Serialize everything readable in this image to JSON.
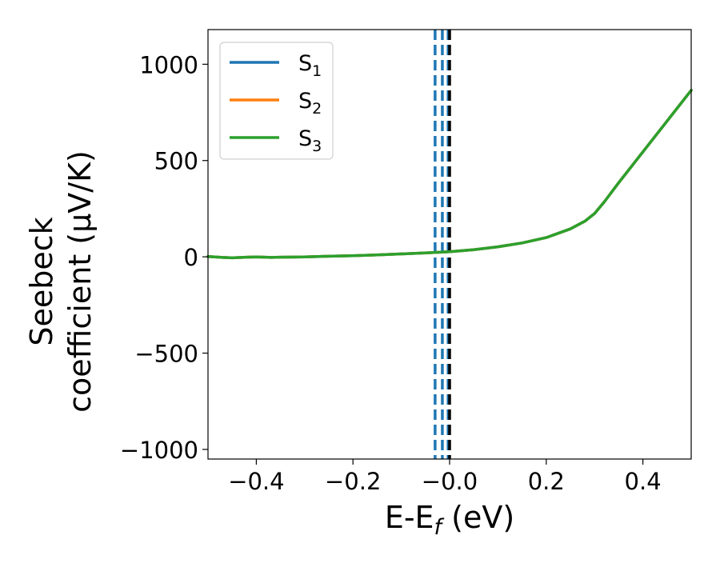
{
  "chart_data": {
    "type": "line",
    "title": "",
    "xlabel": {
      "base": "E-E",
      "sub": "f",
      "unit": " (eV)"
    },
    "ylabel": {
      "line1": "Seebeck",
      "line2": "coefficient  (μV/K)"
    },
    "xlim": [
      -0.5,
      0.5
    ],
    "ylim": [
      -1050,
      1180
    ],
    "x_ticks": [
      -0.4,
      -0.2,
      0.0,
      0.2,
      0.4
    ],
    "x_tick_labels": [
      "−0.4",
      "−0.2",
      "−0.0",
      "0.2",
      "0.4"
    ],
    "y_ticks": [
      -1000,
      -500,
      0,
      500,
      1000
    ],
    "y_tick_labels": [
      "−1000",
      "−500",
      "0",
      "500",
      "1000"
    ],
    "grid": false,
    "legend_position": "top-left",
    "series": [
      {
        "name": "S",
        "subscript": "1",
        "color": "#1f77b4",
        "x": [
          -0.5,
          -0.47,
          -0.45,
          -0.42,
          -0.4,
          -0.37,
          -0.35,
          -0.3,
          -0.25,
          -0.2,
          -0.15,
          -0.1,
          -0.05,
          0.0,
          0.05,
          0.1,
          0.15,
          0.2,
          0.25,
          0.28,
          0.3,
          0.32,
          0.35,
          0.4,
          0.45,
          0.5
        ],
        "y": [
          2,
          -3,
          -5,
          -2,
          0,
          -3,
          -2,
          0,
          3,
          6,
          10,
          15,
          20,
          27,
          37,
          52,
          72,
          100,
          145,
          185,
          225,
          285,
          385,
          545,
          705,
          865
        ]
      },
      {
        "name": "S",
        "subscript": "2",
        "color": "#ff7f0e",
        "x": [
          -0.5,
          -0.47,
          -0.45,
          -0.42,
          -0.4,
          -0.37,
          -0.35,
          -0.3,
          -0.25,
          -0.2,
          -0.15,
          -0.1,
          -0.05,
          0.0,
          0.05,
          0.1,
          0.15,
          0.2,
          0.25,
          0.28,
          0.3,
          0.32,
          0.35,
          0.4,
          0.45,
          0.5
        ],
        "y": [
          2,
          -3,
          -5,
          -2,
          0,
          -3,
          -2,
          0,
          3,
          6,
          10,
          15,
          20,
          27,
          37,
          52,
          72,
          100,
          145,
          185,
          225,
          285,
          385,
          545,
          705,
          865
        ]
      },
      {
        "name": "S",
        "subscript": "3",
        "color": "#2ca02c",
        "x": [
          -0.5,
          -0.47,
          -0.45,
          -0.42,
          -0.4,
          -0.37,
          -0.35,
          -0.3,
          -0.25,
          -0.2,
          -0.15,
          -0.1,
          -0.05,
          0.0,
          0.05,
          0.1,
          0.15,
          0.2,
          0.25,
          0.28,
          0.3,
          0.32,
          0.35,
          0.4,
          0.45,
          0.5
        ],
        "y": [
          2,
          -3,
          -5,
          -2,
          0,
          -3,
          -2,
          0,
          3,
          6,
          10,
          15,
          20,
          27,
          37,
          52,
          72,
          100,
          145,
          185,
          225,
          285,
          385,
          545,
          705,
          865
        ]
      }
    ],
    "vertical_lines": [
      {
        "x": -0.03,
        "style": "dashed",
        "color": "#1f77b4"
      },
      {
        "x": -0.015,
        "style": "dashed",
        "color": "#1f77b4"
      },
      {
        "x": -0.003,
        "style": "dashed",
        "color": "#1f77b4"
      },
      {
        "x": 0.0,
        "style": "dashed",
        "color": "#000000"
      }
    ]
  }
}
